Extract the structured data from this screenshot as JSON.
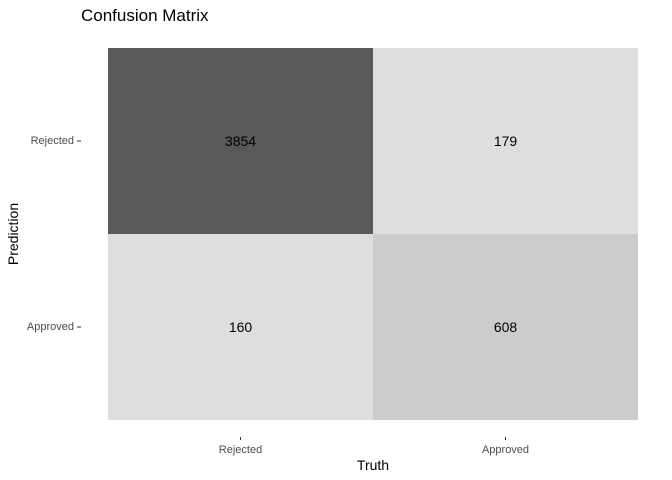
{
  "chart_data": {
    "type": "heatmap",
    "title": "Confusion Matrix",
    "xlabel": "Truth",
    "ylabel": "Prediction",
    "x_categories": [
      "Rejected",
      "Approved"
    ],
    "y_categories": [
      "Rejected",
      "Approved"
    ],
    "cells": [
      {
        "prediction": "Rejected",
        "truth": "Rejected",
        "value": 3854,
        "fill": "#595959"
      },
      {
        "prediction": "Rejected",
        "truth": "Approved",
        "value": 179,
        "fill": "#dedede"
      },
      {
        "prediction": "Approved",
        "truth": "Rejected",
        "value": 160,
        "fill": "#dedede"
      },
      {
        "prediction": "Approved",
        "truth": "Approved",
        "value": 608,
        "fill": "#cccccc"
      }
    ],
    "grid": false,
    "legend": "none",
    "background": "#ffffff",
    "text_color": "#000000",
    "tick_label_color": "#4d4d4d"
  }
}
